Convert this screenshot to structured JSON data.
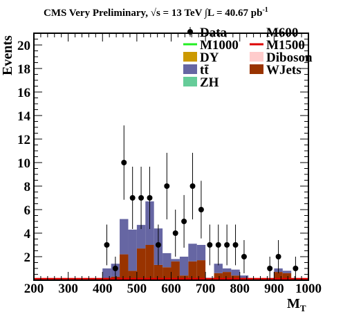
{
  "chart_data": {
    "type": "bar",
    "title_main": "CMS Very Preliminary, ",
    "title_sqrt": "√s",
    "title_energy": " = 13 TeV ",
    "title_int": "∫",
    "title_lumi": "L = 40.67 pb",
    "title_lumi_exp": "-1",
    "xlabel_main": "M",
    "xlabel_sub": "T",
    "ylabel": "Events",
    "xlim": [
      200,
      1000
    ],
    "ylim": [
      0,
      21
    ],
    "xticks": [
      200,
      300,
      400,
      500,
      600,
      700,
      800,
      900,
      1000
    ],
    "xtick_labels": [
      "200",
      "300",
      "400",
      "500",
      "600",
      "700",
      "800",
      "900",
      "1000"
    ],
    "yticks": [
      2,
      4,
      6,
      8,
      10,
      12,
      14,
      16,
      18,
      20
    ],
    "ytick_labels": [
      "2",
      "4",
      "6",
      "8",
      "10",
      "12",
      "14",
      "16",
      "18",
      "20"
    ],
    "bin_edges": [
      200,
      225,
      250,
      275,
      300,
      325,
      350,
      375,
      400,
      425,
      450,
      475,
      500,
      525,
      550,
      575,
      600,
      625,
      650,
      675,
      700,
      725,
      750,
      775,
      800,
      825,
      850,
      875,
      900,
      925,
      950,
      975,
      1000
    ],
    "stack": [
      {
        "name": "WJets",
        "color": "#993300",
        "values": [
          0.1,
          0.1,
          0.1,
          0.1,
          0.1,
          0.1,
          0.1,
          0.1,
          0.2,
          0.3,
          2.2,
          0.8,
          2.7,
          3.0,
          1.3,
          1.1,
          1.6,
          0.4,
          1.6,
          1.7,
          0.1,
          0.6,
          0.7,
          0.4,
          0.2,
          0.1,
          0.1,
          0.1,
          0.7,
          0.6,
          0.1,
          0.1
        ]
      },
      {
        "name": "tt̄",
        "color": "#6666a3",
        "values": [
          0.0,
          0.0,
          0.0,
          0.0,
          0.0,
          0.0,
          0.0,
          0.0,
          0.8,
          1.1,
          3.0,
          3.5,
          2.0,
          3.7,
          3.1,
          1.2,
          0.2,
          1.6,
          1.5,
          1.3,
          0.1,
          0.8,
          0.3,
          0.5,
          0.2,
          0.0,
          0.0,
          0.0,
          0.3,
          0.2,
          0.0,
          0.0
        ]
      },
      {
        "name": "ZH",
        "color": "#66cc99",
        "values": [
          0,
          0,
          0,
          0,
          0,
          0,
          0,
          0,
          0,
          0,
          0,
          0,
          0,
          0,
          0,
          0,
          0,
          0,
          0,
          0,
          0,
          0,
          0,
          0,
          0,
          0,
          0,
          0,
          0,
          0,
          0,
          0
        ]
      }
    ],
    "data_points": {
      "name": "Data",
      "x": [
        412.5,
        437.5,
        462.5,
        487.5,
        512.5,
        537.5,
        562.5,
        587.5,
        612.5,
        637.5,
        662.5,
        687.5,
        712.5,
        737.5,
        762.5,
        787.5,
        812.5,
        887.5,
        912.5,
        962.5
      ],
      "y": [
        3,
        1,
        10,
        7,
        7,
        7,
        3,
        8,
        4,
        5,
        8,
        6,
        3,
        3,
        3,
        3,
        2,
        1,
        2,
        1
      ],
      "err": [
        1.73,
        1.0,
        3.16,
        2.65,
        2.65,
        2.65,
        1.73,
        2.83,
        2.0,
        2.24,
        2.83,
        2.45,
        1.73,
        1.73,
        1.73,
        1.73,
        1.41,
        1.0,
        1.41,
        1.0
      ]
    },
    "signal_lines": [
      {
        "name": "M600",
        "color": "#1a1a1a"
      },
      {
        "name": "M1000",
        "color": "#22ee22"
      },
      {
        "name": "M1500",
        "color": "#dd0000"
      }
    ],
    "baseline_line": {
      "name": "M1500",
      "color": "#dd0000",
      "value": 0.1
    },
    "legend": [
      {
        "name": "Data",
        "style": "marker"
      },
      {
        "name": "M600",
        "style": "none"
      },
      {
        "name": "M1000",
        "style": "line",
        "color": "#22ee22"
      },
      {
        "name": "M1500",
        "style": "line",
        "color": "#dd0000"
      },
      {
        "name": "DY",
        "style": "box",
        "color": "#cc9900"
      },
      {
        "name": "Diboson",
        "style": "box",
        "color": "#ffcccc"
      },
      {
        "name": "tt̄",
        "style": "box",
        "color": "#6666a3"
      },
      {
        "name": "WJets",
        "style": "box",
        "color": "#993300"
      },
      {
        "name": "ZH",
        "style": "box",
        "color": "#66cc99"
      }
    ],
    "legend_placement": "top-right",
    "grid": false
  }
}
